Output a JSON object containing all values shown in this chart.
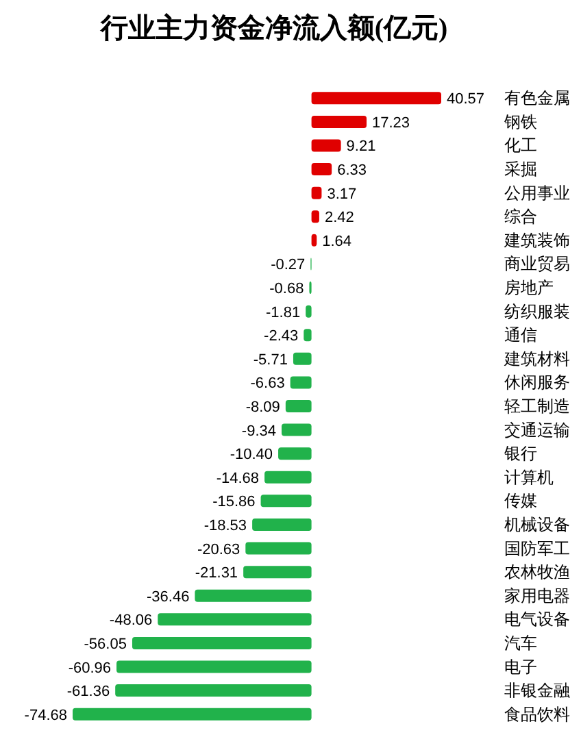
{
  "chart_data": {
    "type": "bar",
    "orientation": "horizontal",
    "title": "行业主力资金净流入额(亿元)",
    "categories": [
      "有色金属",
      "钢铁",
      "化工",
      "采掘",
      "公用事业",
      "综合",
      "建筑装饰",
      "商业贸易",
      "房地产",
      "纺织服装",
      "通信",
      "建筑材料",
      "休闲服务",
      "轻工制造",
      "交通运输",
      "银行",
      "计算机",
      "传媒",
      "机械设备",
      "国防军工",
      "农林牧渔",
      "家用电器",
      "电气设备",
      "汽车",
      "电子",
      "非银金融",
      "食品饮料"
    ],
    "values": [
      40.57,
      17.23,
      9.21,
      6.33,
      3.17,
      2.42,
      1.64,
      -0.27,
      -0.68,
      -1.81,
      -2.43,
      -5.71,
      -6.63,
      -8.09,
      -9.34,
      -10.4,
      -14.68,
      -15.86,
      -18.53,
      -20.63,
      -21.31,
      -36.46,
      -48.06,
      -56.05,
      -60.96,
      -61.36,
      -74.68
    ],
    "value_labels": [
      "40.57",
      "17.23",
      "9.21",
      "6.33",
      "3.17",
      "2.42",
      "1.64",
      "-0.27",
      "-0.68",
      "-1.81",
      "-2.43",
      "-5.71",
      "-6.63",
      "-8.09",
      "-9.34",
      "-10.40",
      "-14.68",
      "-15.86",
      "-18.53",
      "-20.63",
      "-21.31",
      "-36.46",
      "-48.06",
      "-56.05",
      "-60.96",
      "-61.36",
      "-74.68"
    ],
    "colors": [
      "#e00000",
      "#e00000",
      "#e00000",
      "#e00000",
      "#e00000",
      "#e00000",
      "#e00000",
      "#21b24b",
      "#21b24b",
      "#21b24b",
      "#21b24b",
      "#21b24b",
      "#21b24b",
      "#21b24b",
      "#21b24b",
      "#21b24b",
      "#21b24b",
      "#21b24b",
      "#21b24b",
      "#21b24b",
      "#21b24b",
      "#21b24b",
      "#21b24b",
      "#21b24b",
      "#21b24b",
      "#21b24b",
      "#21b24b"
    ]
  }
}
